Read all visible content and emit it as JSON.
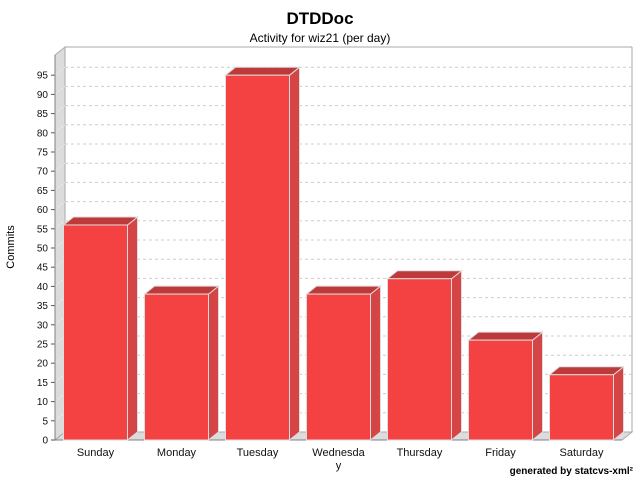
{
  "header": {
    "title": "DTDDoc",
    "subtitle": "Activity for wiz21 (per day)"
  },
  "footer": {
    "credit": "generated by statcvs-xml²"
  },
  "chart_data": {
    "type": "bar",
    "style": "3d-bar",
    "title": "DTDDoc",
    "subtitle": "Activity for wiz21 (per day)",
    "categories": [
      "Sunday",
      "Monday",
      "Tuesday",
      "Wednesday",
      "Thursday",
      "Friday",
      "Saturday"
    ],
    "values": [
      56,
      38,
      95,
      38,
      42,
      26,
      17
    ],
    "x_tick_display": [
      [
        "Sunday"
      ],
      [
        "Monday"
      ],
      [
        "Tuesday"
      ],
      [
        "Wednesda",
        "y"
      ],
      [
        "Thursday"
      ],
      [
        "Friday"
      ],
      [
        "Saturday"
      ]
    ],
    "xlabel": "",
    "ylabel": "Commits",
    "ylim": [
      0,
      95
    ],
    "ytick_step": 5,
    "yticks": [
      0,
      5,
      10,
      15,
      20,
      25,
      30,
      35,
      40,
      45,
      50,
      55,
      60,
      65,
      70,
      75,
      80,
      85,
      90,
      95
    ],
    "grid": "horizontal-dashed",
    "legend": "none",
    "colors": {
      "bar_front": "#F44242",
      "bar_top": "#BE3A3A",
      "bar_side": "#D64545",
      "bar_outline": "#DDDDDD",
      "wall_fill": "#DCDCDC",
      "wall_edge": "#AAAAAA",
      "axis_line": "#808080",
      "gridline": "#CCCCCC",
      "wall_gridline": "#EDEDED",
      "text": "#000000"
    }
  }
}
